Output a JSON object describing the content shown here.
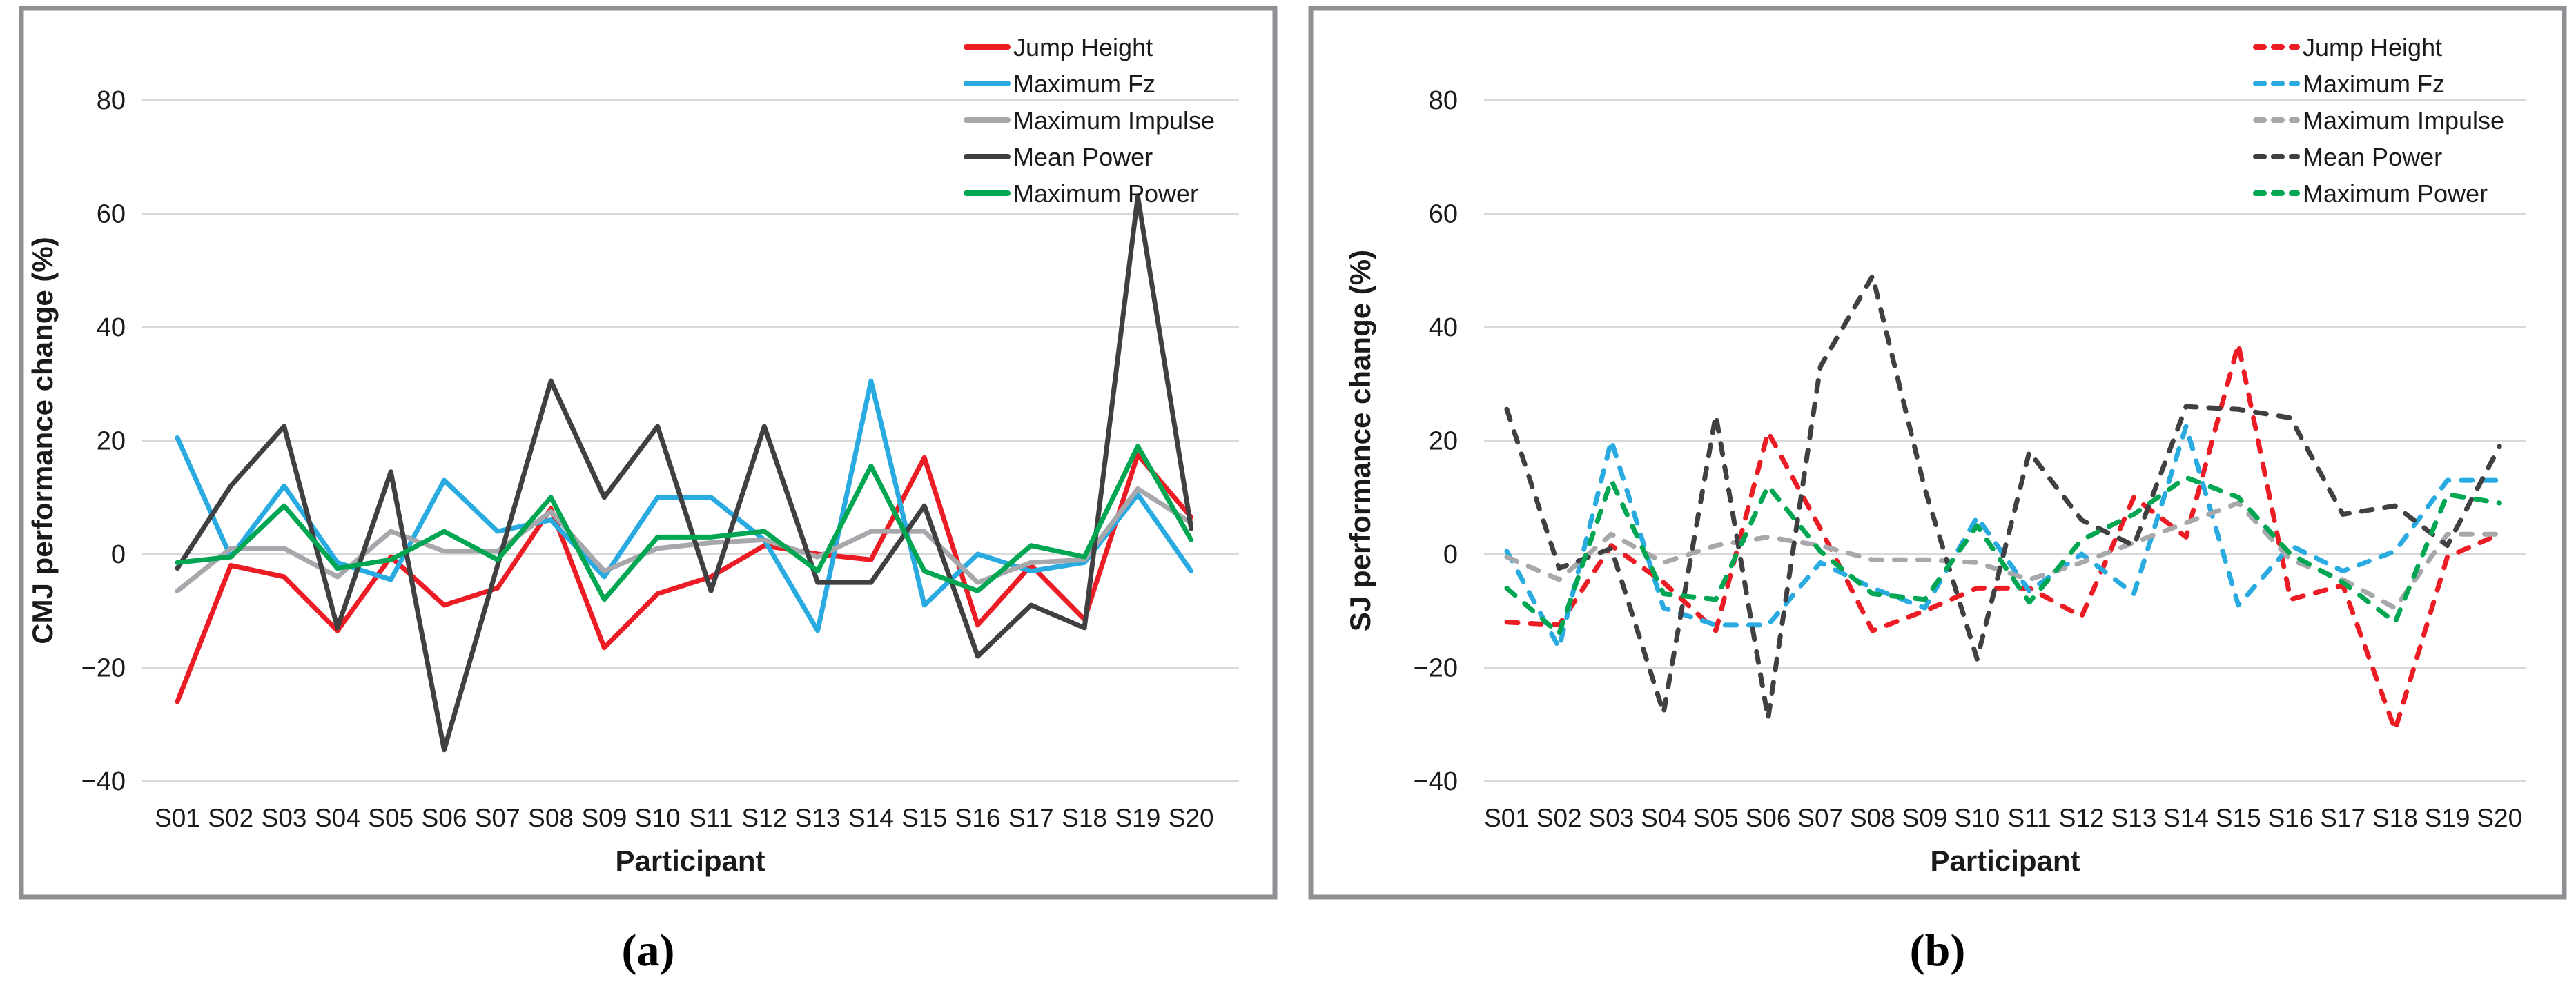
{
  "figure": {
    "captions": {
      "a": "(a)",
      "b": "(b)"
    }
  },
  "chart_data": [
    {
      "type": "line",
      "panel": "a",
      "title": "",
      "xlabel": "Participant",
      "ylabel": "CMJ performance change (%)",
      "ylim": [
        -40,
        80
      ],
      "yticks": [
        80,
        60,
        40,
        20,
        0,
        -20,
        -40
      ],
      "grid": true,
      "legend_position": "top-right",
      "line_style": "solid",
      "categories": [
        "S01",
        "S02",
        "S03",
        "S04",
        "S05",
        "S06",
        "S07",
        "S08",
        "S09",
        "S10",
        "S11",
        "S12",
        "S13",
        "S14",
        "S15",
        "S16",
        "S17",
        "S18",
        "S19",
        "S20"
      ],
      "series": [
        {
          "name": "Jump Height",
          "color": "#EC1C24",
          "values": [
            -26,
            -2,
            -4,
            -13.5,
            -0.5,
            -9,
            -6,
            8,
            -16.5,
            -7,
            -4,
            1.5,
            0,
            -1,
            17,
            -12.5,
            -2,
            -11.5,
            17.5,
            6.5
          ]
        },
        {
          "name": "Maximum Fz",
          "color": "#29ABE2",
          "values": [
            20.5,
            -0.5,
            12,
            -1.5,
            -4.5,
            13,
            4,
            6,
            -4,
            10,
            10,
            2.5,
            -13.5,
            30.5,
            -9,
            0,
            -3,
            -1.5,
            10.5,
            -3
          ]
        },
        {
          "name": "Maximum Impulse",
          "color": "#A6A8AB",
          "values": [
            -6.5,
            1,
            1,
            -4,
            4,
            0.5,
            0.5,
            7.5,
            -3,
            1,
            2,
            2.5,
            -0.5,
            4,
            4,
            -5,
            -1.5,
            -1,
            11.5,
            5.5
          ]
        },
        {
          "name": "Mean Power",
          "color": "#404042",
          "values": [
            -2.5,
            12,
            22.5,
            -13,
            14.5,
            -34.5,
            -2,
            30.5,
            10,
            22.5,
            -6.5,
            22.5,
            -5,
            -5,
            8.5,
            -18,
            -9,
            -13,
            63,
            4.5
          ]
        },
        {
          "name": "Maximum Power",
          "color": "#00A651",
          "values": [
            -1.5,
            -0.5,
            8.5,
            -2.5,
            -1,
            4,
            -1,
            10,
            -8,
            3,
            3,
            4,
            -3,
            15.5,
            -3,
            -6.5,
            1.5,
            -0.5,
            19,
            2.5
          ]
        }
      ]
    },
    {
      "type": "line",
      "panel": "b",
      "title": "",
      "xlabel": "Participant",
      "ylabel": "SJ performance change (%)",
      "ylim": [
        -40,
        80
      ],
      "yticks": [
        80,
        60,
        40,
        20,
        0,
        -20,
        -40
      ],
      "grid": true,
      "legend_position": "top-right",
      "line_style": "dashed",
      "categories": [
        "S01",
        "S02",
        "S03",
        "S04",
        "S05",
        "S06",
        "S07",
        "S08",
        "S09",
        "S10",
        "S11",
        "S12",
        "S13",
        "S14",
        "S15",
        "S16",
        "S17",
        "S18",
        "S19",
        "S20"
      ],
      "series": [
        {
          "name": "Jump Height",
          "color": "#EC1C24",
          "values": [
            -12,
            -12.5,
            1.5,
            -5,
            -13.5,
            21.5,
            4.5,
            -13.5,
            -10,
            -6,
            -6,
            -11,
            10,
            3,
            37,
            -8,
            -5.5,
            -31,
            -0.5,
            3.5
          ]
        },
        {
          "name": "Maximum Fz",
          "color": "#29ABE2",
          "values": [
            0.5,
            -16.5,
            20,
            -9.5,
            -12.5,
            -12.5,
            -1.5,
            -6,
            -9.5,
            6.5,
            -6.5,
            0,
            -7,
            22.5,
            -9,
            1.5,
            -3,
            0.5,
            13,
            13
          ]
        },
        {
          "name": "Maximum Impulse",
          "color": "#A6A8AB",
          "values": [
            -0.5,
            -4.5,
            3.5,
            -1.5,
            1.5,
            3,
            1.5,
            -1,
            -1,
            -1.5,
            -4.5,
            -1.5,
            2,
            5.5,
            9,
            -1,
            -4.5,
            -9.5,
            3.5,
            3.5
          ]
        },
        {
          "name": "Mean Power",
          "color": "#404042",
          "values": [
            25.5,
            -2.5,
            1,
            -28,
            24.5,
            -29,
            33,
            49,
            11.5,
            -18.5,
            18,
            6,
            1.5,
            26,
            25.5,
            24,
            7,
            8.5,
            1.5,
            19
          ]
        },
        {
          "name": "Maximum Power",
          "color": "#00A651",
          "values": [
            -6,
            -14,
            13,
            -7,
            -8,
            12,
            0.5,
            -7,
            -8,
            5,
            -8.5,
            2.5,
            7,
            13.5,
            10,
            0,
            -5,
            -12,
            10.5,
            9
          ]
        }
      ]
    }
  ],
  "style": {
    "grid_color": "#D9D9D9",
    "border_color": "#8F9093",
    "text_color": "#1a1a1a"
  }
}
